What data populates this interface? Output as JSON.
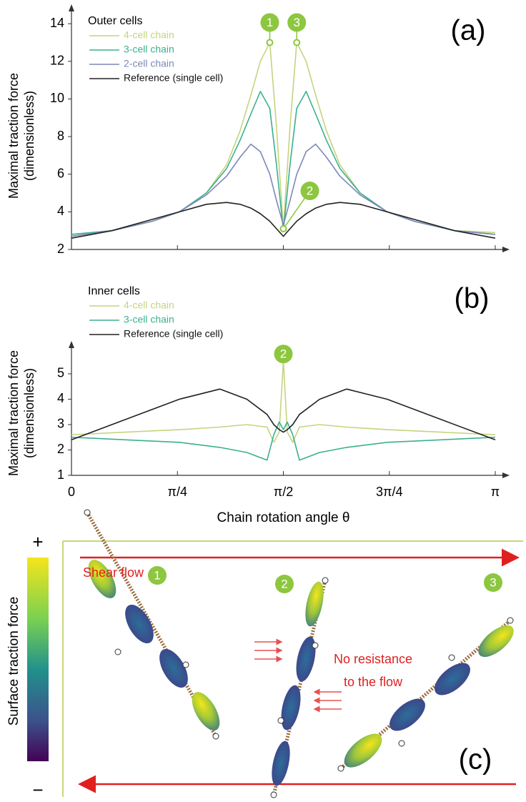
{
  "chart_data": [
    {
      "type": "line",
      "legend_title": "Outer cells",
      "panel_label": "(a)",
      "ylabel": [
        "Maximal traction force",
        "(dimensionless)"
      ],
      "x": [
        0,
        0.3,
        0.6,
        0.8,
        1.0,
        1.15,
        1.25,
        1.33,
        1.4,
        1.47,
        1.52,
        1.5708,
        1.62,
        1.67,
        1.74,
        1.81,
        1.89,
        1.99,
        2.14,
        2.34,
        2.54,
        2.84,
        3.1416
      ],
      "xlim": [
        0,
        3.1416
      ],
      "xticks": [
        0,
        0.7854,
        1.5708,
        2.3562,
        3.1416
      ],
      "ylim": [
        2,
        14.5
      ],
      "yticks": [
        2,
        4,
        6,
        8,
        10,
        12,
        14
      ],
      "series": [
        {
          "name": "4-cell chain",
          "color": "#c5d47e",
          "values": [
            2.8,
            3.0,
            3.5,
            4.0,
            5.0,
            6.5,
            8.3,
            10.2,
            12.0,
            13.0,
            8.5,
            3.1,
            8.5,
            13.0,
            12.0,
            10.2,
            8.3,
            6.5,
            5.0,
            4.0,
            3.5,
            3.0,
            2.9
          ]
        },
        {
          "name": "3-cell chain",
          "color": "#3bb08f",
          "values": [
            2.8,
            3.0,
            3.5,
            4.0,
            5.0,
            6.3,
            7.8,
            9.2,
            10.4,
            9.5,
            6.5,
            3.0,
            6.5,
            9.5,
            10.4,
            9.2,
            7.8,
            6.3,
            5.0,
            4.0,
            3.5,
            3.0,
            2.8
          ]
        },
        {
          "name": "2-cell chain",
          "color": "#7d87b9",
          "values": [
            2.7,
            3.0,
            3.5,
            4.0,
            4.9,
            5.9,
            6.9,
            7.6,
            7.2,
            6.0,
            4.6,
            3.3,
            4.6,
            6.0,
            7.2,
            7.6,
            6.9,
            5.9,
            4.9,
            4.0,
            3.5,
            3.0,
            2.8
          ]
        },
        {
          "name": "Reference (single cell)",
          "color": "#222222",
          "values": [
            2.6,
            3.0,
            3.6,
            4.0,
            4.4,
            4.5,
            4.4,
            4.2,
            3.9,
            3.5,
            3.1,
            2.7,
            3.1,
            3.5,
            3.9,
            4.2,
            4.4,
            4.5,
            4.4,
            4.0,
            3.6,
            3.0,
            2.6
          ]
        }
      ],
      "annotations": [
        {
          "label": "1",
          "x": 1.47,
          "y": 13
        },
        {
          "label": "3",
          "x": 1.67,
          "y": 13
        },
        {
          "label": "2",
          "x": 1.5708,
          "y": 3.1
        }
      ]
    },
    {
      "type": "line",
      "legend_title": "Inner cells",
      "panel_label": "(b)",
      "ylabel": [
        "Maximal traction force",
        "(dimensionless)"
      ],
      "xlabel": "Chain rotation angle θ",
      "x": [
        0,
        0.4,
        0.8,
        1.1,
        1.3,
        1.45,
        1.5,
        1.54,
        1.5708,
        1.6,
        1.64,
        1.69,
        1.84,
        2.04,
        2.34,
        2.74,
        3.1416
      ],
      "xlim": [
        0,
        3.1416
      ],
      "xticks": [
        0,
        {
          "value": 0.7854,
          "label": "π/4"
        },
        {
          "value": 1.5708,
          "label": "π/2"
        },
        {
          "value": 2.3562,
          "label": "3π/4"
        },
        {
          "value": 3.1416,
          "label": "π"
        }
      ],
      "ylim": [
        1,
        5.9
      ],
      "yticks": [
        1,
        2,
        3,
        4,
        5
      ],
      "series": [
        {
          "name": "4-cell chain",
          "color": "#c5d47e",
          "values": [
            2.6,
            2.7,
            2.8,
            2.9,
            3.0,
            2.9,
            2.3,
            2.7,
            5.5,
            2.7,
            2.3,
            2.9,
            3.0,
            2.9,
            2.8,
            2.7,
            2.6
          ]
        },
        {
          "name": "3-cell chain",
          "color": "#3bb08f",
          "values": [
            2.5,
            2.4,
            2.3,
            2.1,
            1.9,
            1.6,
            2.6,
            3.1,
            2.8,
            3.1,
            2.6,
            1.6,
            1.9,
            2.1,
            2.3,
            2.4,
            2.5
          ]
        },
        {
          "name": "Reference (single cell)",
          "color": "#222222",
          "values": [
            2.4,
            3.2,
            4.0,
            4.4,
            4.0,
            3.4,
            3.0,
            2.8,
            2.7,
            2.8,
            3.0,
            3.4,
            4.0,
            4.4,
            4.0,
            3.2,
            2.4
          ]
        }
      ],
      "annotations": [
        {
          "label": "2",
          "x": 1.5708,
          "y": 5.5
        }
      ]
    }
  ],
  "diagram": {
    "colorbar": {
      "label": "Surface traction force",
      "max": "+",
      "min": "−"
    },
    "shear_flow": "Shear flow",
    "note": [
      "No resistance",
      "to the flow"
    ],
    "badges": [
      "1",
      "2",
      "3"
    ],
    "panel_label": "(c)"
  }
}
